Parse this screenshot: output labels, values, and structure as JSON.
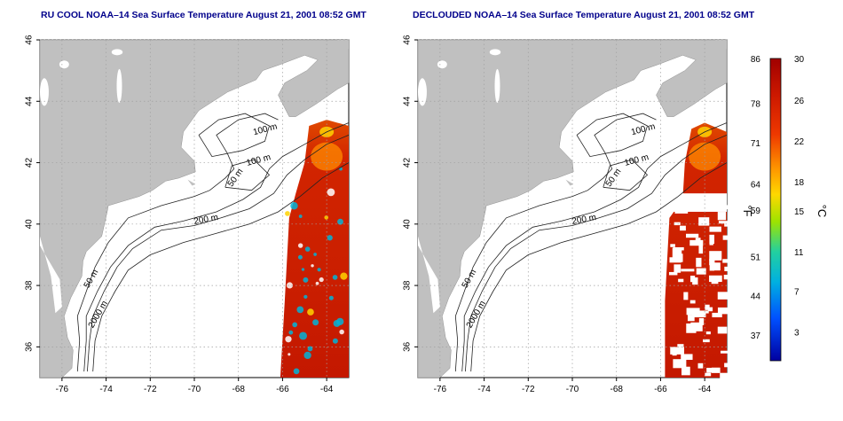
{
  "panels": [
    {
      "title": "RU COOL NOAA–14 Sea Surface Temperature August 21, 2001 08:52 GMT",
      "cloud_mask": false
    },
    {
      "title": "DECLOUDED NOAA–14 Sea Surface Temperature August 21, 2001 08:52 GMT",
      "cloud_mask": true
    }
  ],
  "map": {
    "lon_range": [
      -77,
      -63
    ],
    "lat_range": [
      35,
      46
    ],
    "lon_ticks": [
      "-76",
      "-74",
      "-72",
      "-70",
      "-68",
      "-66",
      "-64"
    ],
    "lat_ticks": [
      "36",
      "38",
      "40",
      "42",
      "44",
      "46"
    ],
    "land_color": "#c0c0c0",
    "grid": "dotted",
    "contour_labels": [
      "100 m",
      "100 m",
      "50 m",
      "200 m",
      "50 m",
      "2000 m"
    ]
  },
  "colorbar": {
    "f_label": "°F",
    "c_label": "°C",
    "f_ticks": [
      "86",
      "78",
      "71",
      "64",
      "59",
      "51",
      "44",
      "37"
    ],
    "c_ticks": [
      "30",
      "26",
      "22",
      "18",
      "15",
      "11",
      "7",
      "3"
    ],
    "colors": [
      "#a50000",
      "#d11a00",
      "#f04a00",
      "#ff9000",
      "#ffd200",
      "#a8e600",
      "#33d27a",
      "#00b4d8",
      "#0066ff",
      "#0000b4"
    ]
  }
}
